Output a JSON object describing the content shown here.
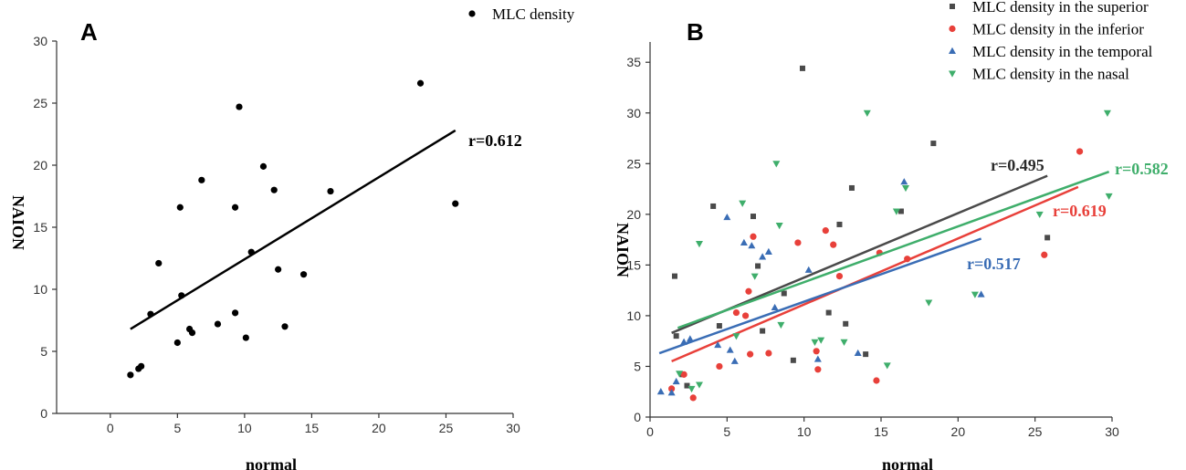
{
  "chart_data": [
    {
      "panel": "A",
      "type": "scatter",
      "xlabel": "normal",
      "ylabel": "NAION",
      "xlim": [
        -4,
        30
      ],
      "ylim": [
        0,
        30
      ],
      "xticks": [
        0,
        5,
        10,
        15,
        20,
        25,
        30
      ],
      "yticks": [
        0,
        5,
        10,
        15,
        20,
        25,
        30
      ],
      "legend": [
        "MLC density"
      ],
      "series": [
        {
          "name": "MLC density",
          "color": "#000000",
          "marker": "circle",
          "points": [
            [
              1.5,
              3.1
            ],
            [
              2.1,
              3.6
            ],
            [
              2.3,
              3.8
            ],
            [
              3.0,
              8.0
            ],
            [
              3.6,
              12.1
            ],
            [
              5.0,
              5.7
            ],
            [
              5.2,
              16.6
            ],
            [
              5.3,
              9.5
            ],
            [
              5.9,
              6.8
            ],
            [
              6.1,
              6.5
            ],
            [
              6.8,
              18.8
            ],
            [
              8.0,
              7.2
            ],
            [
              9.3,
              16.6
            ],
            [
              9.3,
              8.1
            ],
            [
              9.6,
              24.7
            ],
            [
              10.1,
              6.1
            ],
            [
              10.5,
              13.0
            ],
            [
              11.4,
              19.9
            ],
            [
              12.2,
              18.0
            ],
            [
              12.5,
              11.6
            ],
            [
              13.0,
              7.0
            ],
            [
              14.4,
              11.2
            ],
            [
              16.4,
              17.9
            ],
            [
              23.1,
              26.6
            ],
            [
              25.7,
              16.9
            ]
          ],
          "fit": {
            "x": [
              1.5,
              25.7
            ],
            "y": [
              6.8,
              22.8
            ]
          },
          "r_label": "r=0.612"
        }
      ]
    },
    {
      "panel": "B",
      "type": "scatter",
      "xlabel": "normal",
      "ylabel": "NAION",
      "xlim": [
        0,
        30
      ],
      "ylim": [
        0,
        37
      ],
      "xticks": [
        0,
        5,
        10,
        15,
        20,
        25,
        30
      ],
      "yticks": [
        0,
        5,
        10,
        15,
        20,
        25,
        30,
        35
      ],
      "legend": [
        "MLC density in the superior",
        "MLC density in the inferior",
        "MLC density in the temporal",
        "MLC density in the nasal"
      ],
      "series": [
        {
          "name": "MLC density in the superior",
          "color": "#4a4a4a",
          "marker": "square",
          "points": [
            [
              1.6,
              13.9
            ],
            [
              1.7,
              8.0
            ],
            [
              2.1,
              4.2
            ],
            [
              2.4,
              3.1
            ],
            [
              4.1,
              20.8
            ],
            [
              4.5,
              9.0
            ],
            [
              6.7,
              19.8
            ],
            [
              7.0,
              14.9
            ],
            [
              7.3,
              8.5
            ],
            [
              8.7,
              12.2
            ],
            [
              9.9,
              34.4
            ],
            [
              9.3,
              5.6
            ],
            [
              11.6,
              10.3
            ],
            [
              12.3,
              19.0
            ],
            [
              12.7,
              9.2
            ],
            [
              13.1,
              22.6
            ],
            [
              14.0,
              6.2
            ],
            [
              16.3,
              20.3
            ],
            [
              18.4,
              27.0
            ],
            [
              25.8,
              17.7
            ]
          ],
          "fit": {
            "x": [
              1.4,
              25.8
            ],
            "y": [
              8.3,
              23.8
            ]
          },
          "r_label": "r=0.495"
        },
        {
          "name": "MLC density in the inferior",
          "color": "#e8403a",
          "marker": "circle",
          "points": [
            [
              1.4,
              2.8
            ],
            [
              2.2,
              4.2
            ],
            [
              2.8,
              1.9
            ],
            [
              4.5,
              5.0
            ],
            [
              5.6,
              10.3
            ],
            [
              6.2,
              10.0
            ],
            [
              6.4,
              12.4
            ],
            [
              6.5,
              6.2
            ],
            [
              6.7,
              17.8
            ],
            [
              7.7,
              6.3
            ],
            [
              9.6,
              17.2
            ],
            [
              10.8,
              6.5
            ],
            [
              10.9,
              4.7
            ],
            [
              11.4,
              18.4
            ],
            [
              11.9,
              17.0
            ],
            [
              12.3,
              13.9
            ],
            [
              14.7,
              3.6
            ],
            [
              14.9,
              16.2
            ],
            [
              16.7,
              15.6
            ],
            [
              25.6,
              16.0
            ],
            [
              27.9,
              26.2
            ]
          ],
          "fit": {
            "x": [
              1.4,
              27.8
            ],
            "y": [
              5.5,
              22.7
            ]
          },
          "r_label": "r=0.619"
        },
        {
          "name": "MLC density in the temporal",
          "color": "#3a6db5",
          "marker": "triangle-up",
          "points": [
            [
              0.7,
              2.5
            ],
            [
              1.4,
              2.4
            ],
            [
              1.7,
              3.5
            ],
            [
              2.2,
              7.4
            ],
            [
              2.6,
              7.7
            ],
            [
              4.4,
              7.1
            ],
            [
              5.0,
              19.7
            ],
            [
              5.2,
              6.6
            ],
            [
              5.5,
              5.5
            ],
            [
              6.1,
              17.2
            ],
            [
              6.6,
              16.9
            ],
            [
              7.3,
              15.8
            ],
            [
              7.7,
              16.3
            ],
            [
              8.1,
              10.8
            ],
            [
              10.3,
              14.5
            ],
            [
              10.9,
              5.7
            ],
            [
              13.5,
              6.3
            ],
            [
              16.5,
              23.2
            ],
            [
              21.5,
              12.1
            ]
          ],
          "fit": {
            "x": [
              0.6,
              21.5
            ],
            "y": [
              6.3,
              17.6
            ]
          },
          "r_label": "r=0.517"
        },
        {
          "name": "MLC density in the nasal",
          "color": "#3fae6b",
          "marker": "triangle-down",
          "points": [
            [
              1.9,
              4.3
            ],
            [
              2.7,
              2.8
            ],
            [
              3.2,
              17.1
            ],
            [
              3.2,
              3.2
            ],
            [
              5.6,
              8.0
            ],
            [
              6.0,
              21.1
            ],
            [
              6.8,
              13.9
            ],
            [
              8.2,
              25.0
            ],
            [
              8.4,
              18.9
            ],
            [
              8.5,
              9.1
            ],
            [
              10.7,
              7.4
            ],
            [
              11.1,
              7.6
            ],
            [
              12.6,
              7.4
            ],
            [
              14.1,
              30.0
            ],
            [
              15.4,
              5.1
            ],
            [
              16.0,
              20.3
            ],
            [
              16.6,
              22.6
            ],
            [
              18.1,
              11.3
            ],
            [
              21.1,
              12.1
            ],
            [
              25.3,
              20.0
            ],
            [
              29.7,
              30.0
            ],
            [
              29.8,
              21.8
            ]
          ],
          "fit": {
            "x": [
              1.8,
              29.8
            ],
            "y": [
              8.8,
              24.2
            ]
          },
          "r_label": "r=0.582"
        }
      ]
    }
  ]
}
